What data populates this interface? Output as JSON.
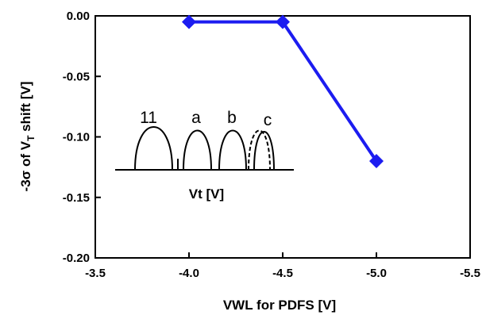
{
  "chart_data": {
    "type": "line",
    "xlabel": "VWL for PDFS [V]",
    "ylabel_main": "-3σ of V",
    "ylabel_sub": "T",
    "ylabel_tail": " shift [V]",
    "xlim": [
      -3.5,
      -5.5
    ],
    "ylim": [
      -0.2,
      0.0
    ],
    "xticks": [
      "-3.5",
      "-4.0",
      "-4.5",
      "-5.0",
      "-5.5"
    ],
    "xtick_values": [
      -3.5,
      -4.0,
      -4.5,
      -5.0,
      -5.5
    ],
    "yticks": [
      "0.00",
      "-0.05",
      "-0.10",
      "-0.15",
      "-0.20"
    ],
    "ytick_values": [
      0.0,
      -0.05,
      -0.1,
      -0.15,
      -0.2
    ],
    "series": [
      {
        "x": [
          -4.0,
          -4.5,
          -5.0
        ],
        "y": [
          -0.005,
          -0.005,
          -0.12
        ],
        "color": "#1c1cf0",
        "marker": "diamond"
      }
    ],
    "inset": {
      "labels": [
        "11",
        "a",
        "b",
        "c"
      ],
      "xlabel": "Vt [V]"
    }
  }
}
